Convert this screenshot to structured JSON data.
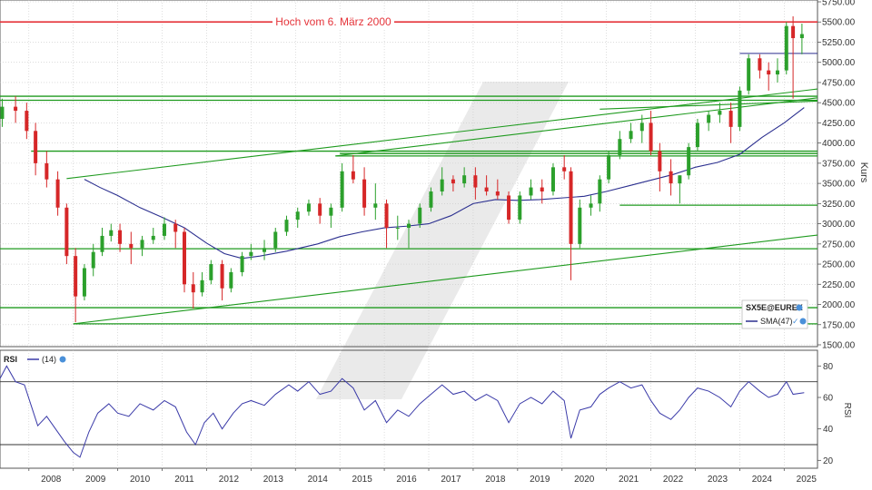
{
  "colors": {
    "up": "#2ca02c",
    "down": "#d62728",
    "sma": "#2b2f8f",
    "support": "#1e9a1e",
    "resistance": "#e5343a",
    "rsi": "#3a3aa8",
    "grid": "#c8c8c8",
    "frame": "#555555",
    "watermark": "#d9d9d9"
  },
  "chart_data": [
    {
      "type": "candlestick",
      "symbol_label": "SX5E@EUREX",
      "indicator_label": "SMA(47)",
      "ylabel": "Kurs",
      "ylim": [
        1500,
        5750
      ],
      "yticks": [
        "5750.00",
        "5500.00",
        "5250.00",
        "5000.00",
        "4750.00",
        "4500.00",
        "4250.00",
        "4000.00",
        "3750.00",
        "3500.00",
        "3250.00",
        "3000.00",
        "2750.00",
        "2500.00",
        "2250.00",
        "2000.00",
        "1750.00",
        "1500.00"
      ],
      "x_labels": [
        "2008",
        "2009",
        "2010",
        "2011",
        "2012",
        "2013",
        "2014",
        "2015",
        "2016",
        "2017",
        "2018",
        "2019",
        "2020",
        "2021",
        "2022",
        "2023",
        "2024",
        "2025"
      ],
      "xlim": [
        2007.35,
        2025.75
      ],
      "annotation": {
        "text": "Hoch vom 6. März 2000",
        "value": 5500
      },
      "candles": [
        [
          2007.4,
          4300,
          4550,
          4200,
          4450
        ],
        [
          2007.7,
          4450,
          4580,
          4250,
          4400
        ],
        [
          2007.95,
          4400,
          4500,
          4050,
          4150
        ],
        [
          2008.15,
          4150,
          4250,
          3600,
          3750
        ],
        [
          2008.4,
          3750,
          3900,
          3450,
          3550
        ],
        [
          2008.65,
          3550,
          3650,
          3100,
          3200
        ],
        [
          2008.85,
          3200,
          3250,
          2500,
          2600
        ],
        [
          2009.05,
          2600,
          2700,
          1780,
          2100
        ],
        [
          2009.25,
          2100,
          2500,
          2050,
          2450
        ],
        [
          2009.45,
          2450,
          2750,
          2350,
          2650
        ],
        [
          2009.65,
          2650,
          2950,
          2600,
          2850
        ],
        [
          2009.85,
          2850,
          3000,
          2780,
          2920
        ],
        [
          2010.05,
          2920,
          3000,
          2650,
          2750
        ],
        [
          2010.3,
          2750,
          2900,
          2500,
          2700
        ],
        [
          2010.55,
          2700,
          2850,
          2600,
          2800
        ],
        [
          2010.8,
          2800,
          2950,
          2750,
          2850
        ],
        [
          2011.05,
          2850,
          3080,
          2800,
          3000
        ],
        [
          2011.3,
          3000,
          3050,
          2700,
          2900
        ],
        [
          2011.5,
          2900,
          2950,
          2150,
          2250
        ],
        [
          2011.7,
          2250,
          2400,
          1950,
          2150
        ],
        [
          2011.9,
          2150,
          2400,
          2100,
          2300
        ],
        [
          2012.1,
          2300,
          2550,
          2250,
          2500
        ],
        [
          2012.35,
          2500,
          2550,
          2050,
          2200
        ],
        [
          2012.55,
          2200,
          2450,
          2150,
          2400
        ],
        [
          2012.8,
          2400,
          2650,
          2350,
          2600
        ],
        [
          2013.0,
          2600,
          2750,
          2550,
          2650
        ],
        [
          2013.3,
          2650,
          2800,
          2550,
          2700
        ],
        [
          2013.55,
          2700,
          2950,
          2650,
          2900
        ],
        [
          2013.8,
          2900,
          3100,
          2850,
          3050
        ],
        [
          2014.05,
          3050,
          3200,
          2950,
          3150
        ],
        [
          2014.3,
          3150,
          3300,
          3100,
          3250
        ],
        [
          2014.55,
          3250,
          3320,
          3000,
          3100
        ],
        [
          2014.8,
          3100,
          3250,
          2950,
          3200
        ],
        [
          2015.05,
          3200,
          3750,
          3150,
          3650
        ],
        [
          2015.3,
          3650,
          3850,
          3500,
          3550
        ],
        [
          2015.55,
          3550,
          3700,
          3100,
          3200
        ],
        [
          2015.8,
          3200,
          3500,
          3050,
          3250
        ],
        [
          2016.05,
          3250,
          3300,
          2700,
          2950
        ],
        [
          2016.3,
          2950,
          3100,
          2800,
          2950
        ],
        [
          2016.55,
          2950,
          3050,
          2700,
          3000
        ],
        [
          2016.8,
          3000,
          3250,
          2950,
          3200
        ],
        [
          2017.05,
          3200,
          3450,
          3150,
          3400
        ],
        [
          2017.3,
          3400,
          3700,
          3350,
          3550
        ],
        [
          2017.55,
          3550,
          3600,
          3400,
          3500
        ],
        [
          2017.8,
          3500,
          3700,
          3450,
          3600
        ],
        [
          2018.05,
          3600,
          3700,
          3300,
          3450
        ],
        [
          2018.3,
          3450,
          3600,
          3350,
          3400
        ],
        [
          2018.55,
          3400,
          3550,
          3300,
          3350
        ],
        [
          2018.8,
          3350,
          3400,
          3000,
          3050
        ],
        [
          2019.05,
          3050,
          3400,
          3000,
          3350
        ],
        [
          2019.3,
          3350,
          3550,
          3300,
          3450
        ],
        [
          2019.55,
          3450,
          3550,
          3250,
          3400
        ],
        [
          2019.8,
          3400,
          3750,
          3350,
          3700
        ],
        [
          2020.05,
          3700,
          3850,
          3550,
          3650
        ],
        [
          2020.2,
          3650,
          3700,
          2300,
          2750
        ],
        [
          2020.4,
          2750,
          3300,
          2700,
          3200
        ],
        [
          2020.65,
          3200,
          3350,
          3100,
          3250
        ],
        [
          2020.85,
          3250,
          3600,
          3150,
          3550
        ],
        [
          2021.05,
          3550,
          3900,
          3500,
          3850
        ],
        [
          2021.3,
          3850,
          4150,
          3800,
          4050
        ],
        [
          2021.55,
          4050,
          4250,
          4000,
          4150
        ],
        [
          2021.8,
          4150,
          4350,
          4000,
          4250
        ],
        [
          2022.0,
          4250,
          4400,
          3850,
          3900
        ],
        [
          2022.2,
          3900,
          4000,
          3400,
          3650
        ],
        [
          2022.45,
          3650,
          3800,
          3350,
          3500
        ],
        [
          2022.65,
          3500,
          3600,
          3250,
          3600
        ],
        [
          2022.85,
          3600,
          4000,
          3550,
          3950
        ],
        [
          2023.05,
          3950,
          4300,
          3900,
          4250
        ],
        [
          2023.3,
          4250,
          4400,
          4150,
          4350
        ],
        [
          2023.55,
          4350,
          4500,
          4250,
          4400
        ],
        [
          2023.8,
          4400,
          4500,
          4000,
          4200
        ],
        [
          2024.0,
          4200,
          4700,
          4150,
          4650
        ],
        [
          2024.2,
          4650,
          5100,
          4600,
          5050
        ],
        [
          2024.45,
          5050,
          5100,
          4800,
          4900
        ],
        [
          2024.65,
          4900,
          5000,
          4650,
          4850
        ],
        [
          2024.85,
          4850,
          5050,
          4750,
          4900
        ],
        [
          2025.05,
          4900,
          5500,
          4850,
          5450
        ],
        [
          2025.2,
          5450,
          5570,
          4550,
          5300
        ],
        [
          2025.4,
          5300,
          5480,
          5100,
          5350
        ]
      ],
      "sma": [
        [
          2009.25,
          3550
        ],
        [
          2009.6,
          3450
        ],
        [
          2010.0,
          3350
        ],
        [
          2010.5,
          3200
        ],
        [
          2011.0,
          3080
        ],
        [
          2011.5,
          2950
        ],
        [
          2012.0,
          2760
        ],
        [
          2012.4,
          2630
        ],
        [
          2012.8,
          2570
        ],
        [
          2013.2,
          2600
        ],
        [
          2013.8,
          2660
        ],
        [
          2014.5,
          2750
        ],
        [
          2015.0,
          2840
        ],
        [
          2015.5,
          2900
        ],
        [
          2016.0,
          2950
        ],
        [
          2016.5,
          2970
        ],
        [
          2017.0,
          3000
        ],
        [
          2017.5,
          3100
        ],
        [
          2018.0,
          3250
        ],
        [
          2018.5,
          3300
        ],
        [
          2019.0,
          3290
        ],
        [
          2019.5,
          3300
        ],
        [
          2020.0,
          3320
        ],
        [
          2020.5,
          3340
        ],
        [
          2021.0,
          3400
        ],
        [
          2021.5,
          3470
        ],
        [
          2022.0,
          3540
        ],
        [
          2022.5,
          3610
        ],
        [
          2023.0,
          3700
        ],
        [
          2023.5,
          3760
        ],
        [
          2024.0,
          3860
        ],
        [
          2024.5,
          4070
        ],
        [
          2025.0,
          4250
        ],
        [
          2025.45,
          4440
        ]
      ],
      "support_lines": [
        [
          [
            2007.35,
            4580
          ],
          [
            2025.75,
            4580
          ]
        ],
        [
          [
            2007.35,
            4530
          ],
          [
            2025.75,
            4530
          ]
        ],
        [
          [
            2008.05,
            3900
          ],
          [
            2025.75,
            3900
          ]
        ],
        [
          [
            2015.0,
            3870
          ],
          [
            2025.75,
            3870
          ]
        ],
        [
          [
            2014.9,
            3840
          ],
          [
            2025.75,
            3840
          ]
        ],
        [
          [
            2021.3,
            3230
          ],
          [
            2025.75,
            3230
          ]
        ],
        [
          [
            2007.35,
            2690
          ],
          [
            2025.75,
            2690
          ]
        ],
        [
          [
            2007.35,
            1960
          ],
          [
            2025.75,
            1960
          ]
        ],
        [
          [
            2009.0,
            1760
          ],
          [
            2025.75,
            1760
          ]
        ],
        [
          [
            2008.85,
            3560
          ],
          [
            2025.75,
            4670
          ]
        ],
        [
          [
            2014.9,
            3840
          ],
          [
            2025.75,
            4560
          ]
        ],
        [
          [
            2020.85,
            4420
          ],
          [
            2025.75,
            4520
          ]
        ],
        [
          [
            2009.0,
            1760
          ],
          [
            2025.75,
            2860
          ]
        ]
      ],
      "resistance_lines": [
        [
          [
            2007.35,
            5500
          ],
          [
            2025.75,
            5500
          ]
        ]
      ],
      "overlay_lines": [
        [
          [
            2024.0,
            5110
          ],
          [
            2025.75,
            5110
          ]
        ]
      ]
    },
    {
      "type": "line",
      "series": [
        {
          "name": "(14)"
        }
      ],
      "title": "RSI",
      "ylabel": "RSI",
      "ylim": [
        15,
        90
      ],
      "yticks": [
        "80",
        "60",
        "40",
        "20"
      ],
      "levels": [
        70,
        30
      ],
      "rsi": [
        [
          2007.35,
          72
        ],
        [
          2007.5,
          80
        ],
        [
          2007.7,
          70
        ],
        [
          2007.9,
          68
        ],
        [
          2008.05,
          55
        ],
        [
          2008.2,
          42
        ],
        [
          2008.4,
          48
        ],
        [
          2008.6,
          40
        ],
        [
          2008.8,
          32
        ],
        [
          2009.0,
          25
        ],
        [
          2009.15,
          22
        ],
        [
          2009.35,
          38
        ],
        [
          2009.55,
          50
        ],
        [
          2009.8,
          56
        ],
        [
          2010.0,
          50
        ],
        [
          2010.25,
          48
        ],
        [
          2010.5,
          56
        ],
        [
          2010.8,
          52
        ],
        [
          2011.05,
          58
        ],
        [
          2011.3,
          54
        ],
        [
          2011.55,
          38
        ],
        [
          2011.75,
          30
        ],
        [
          2011.95,
          44
        ],
        [
          2012.15,
          50
        ],
        [
          2012.35,
          40
        ],
        [
          2012.6,
          50
        ],
        [
          2012.8,
          56
        ],
        [
          2013.0,
          58
        ],
        [
          2013.3,
          55
        ],
        [
          2013.55,
          62
        ],
        [
          2013.85,
          68
        ],
        [
          2014.05,
          64
        ],
        [
          2014.3,
          70
        ],
        [
          2014.55,
          62
        ],
        [
          2014.8,
          64
        ],
        [
          2015.05,
          72
        ],
        [
          2015.3,
          66
        ],
        [
          2015.55,
          52
        ],
        [
          2015.8,
          58
        ],
        [
          2016.05,
          44
        ],
        [
          2016.3,
          52
        ],
        [
          2016.55,
          48
        ],
        [
          2016.8,
          56
        ],
        [
          2017.05,
          62
        ],
        [
          2017.3,
          68
        ],
        [
          2017.55,
          62
        ],
        [
          2017.8,
          64
        ],
        [
          2018.05,
          58
        ],
        [
          2018.3,
          62
        ],
        [
          2018.55,
          58
        ],
        [
          2018.8,
          44
        ],
        [
          2019.05,
          56
        ],
        [
          2019.3,
          60
        ],
        [
          2019.55,
          56
        ],
        [
          2019.8,
          64
        ],
        [
          2020.05,
          58
        ],
        [
          2020.2,
          34
        ],
        [
          2020.4,
          52
        ],
        [
          2020.65,
          54
        ],
        [
          2020.85,
          62
        ],
        [
          2021.05,
          66
        ],
        [
          2021.3,
          70
        ],
        [
          2021.55,
          66
        ],
        [
          2021.8,
          68
        ],
        [
          2022.0,
          58
        ],
        [
          2022.2,
          50
        ],
        [
          2022.45,
          46
        ],
        [
          2022.65,
          52
        ],
        [
          2022.85,
          60
        ],
        [
          2023.05,
          66
        ],
        [
          2023.3,
          64
        ],
        [
          2023.55,
          60
        ],
        [
          2023.8,
          54
        ],
        [
          2024.0,
          64
        ],
        [
          2024.2,
          70
        ],
        [
          2024.45,
          64
        ],
        [
          2024.65,
          60
        ],
        [
          2024.85,
          62
        ],
        [
          2025.05,
          70
        ],
        [
          2025.2,
          62
        ],
        [
          2025.45,
          63
        ]
      ]
    }
  ]
}
